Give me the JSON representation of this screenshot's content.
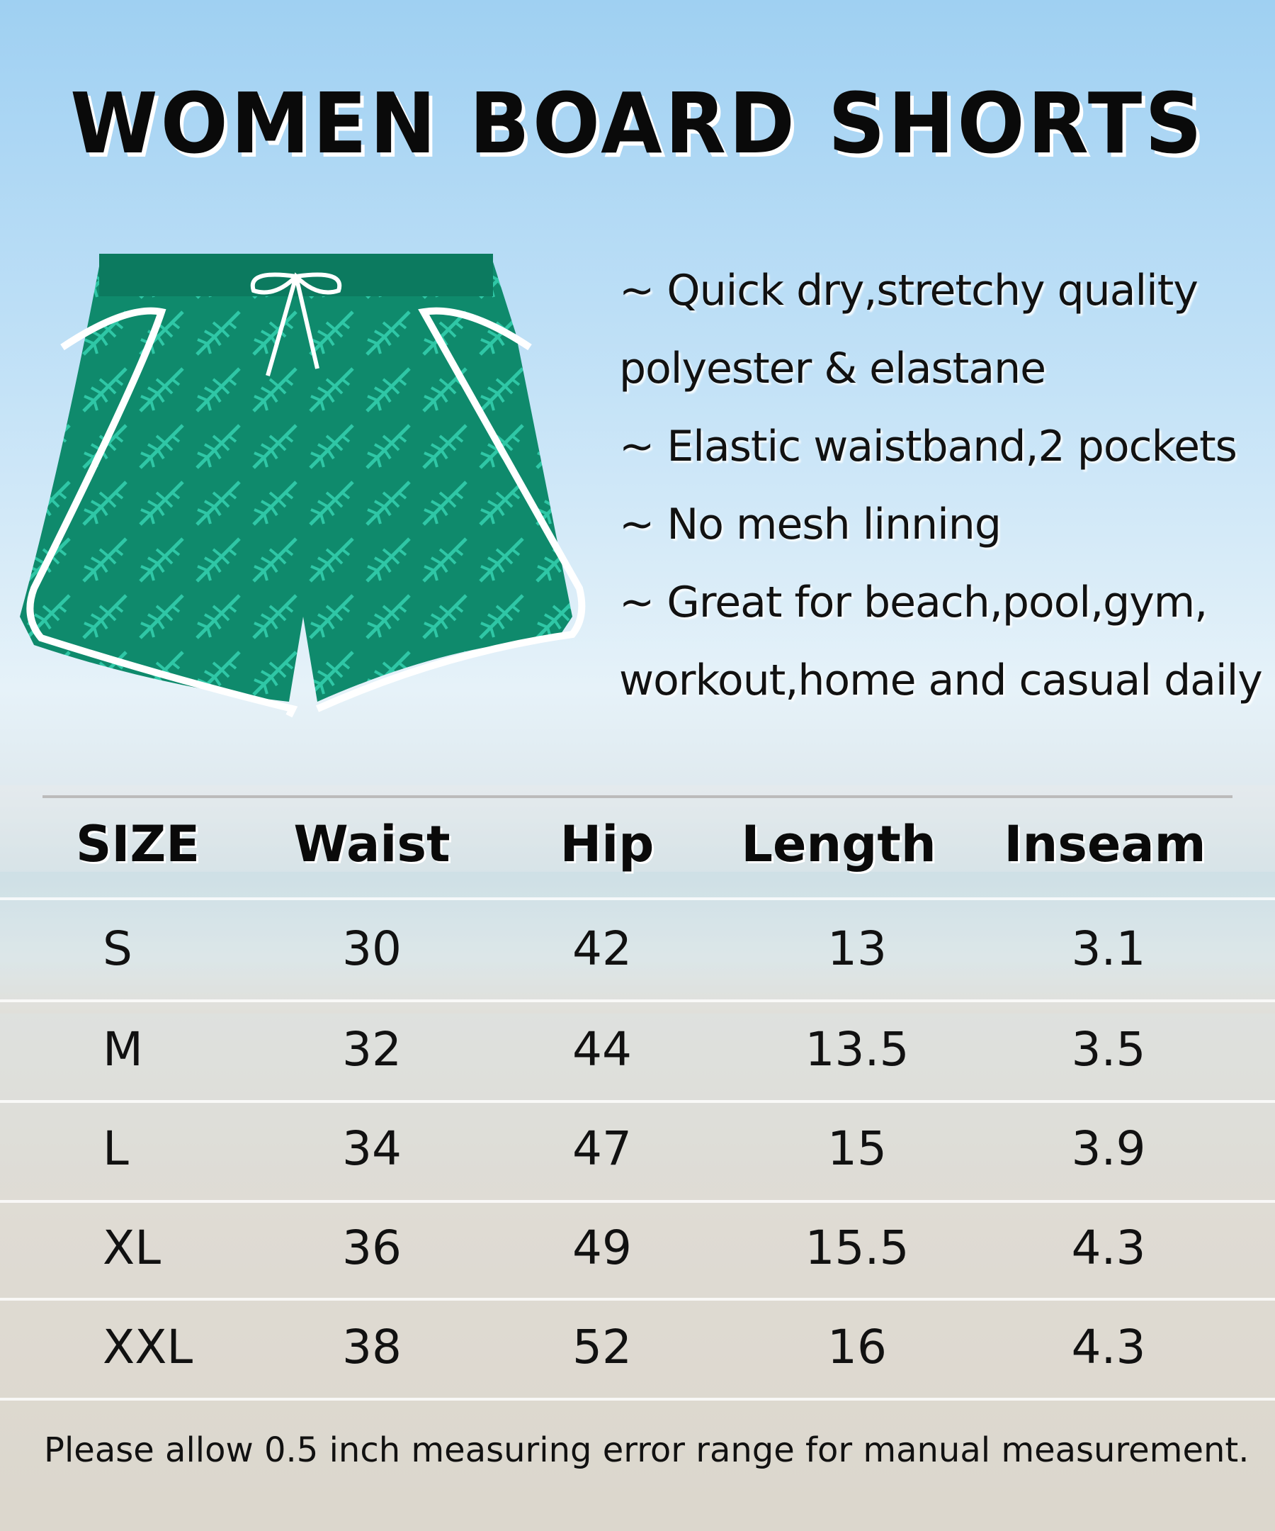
{
  "title": "WOMEN BOARD SHORTS",
  "features": [
    "~ Quick dry,stretchy quality",
    "polyester & elastane",
    "~ Elastic waistband,2 pockets",
    "~ No mesh linning",
    "~ Great for beach,pool,gym,",
    "workout,home and casual daily"
  ],
  "table": {
    "headers": [
      "SIZE",
      "Waist",
      "Hip",
      "Length",
      "Inseam"
    ],
    "rows": [
      [
        "S",
        "30",
        "42",
        "13",
        "3.1"
      ],
      [
        "M",
        "32",
        "44",
        "13.5",
        "3.5"
      ],
      [
        "L",
        "34",
        "47",
        "15",
        "3.9"
      ],
      [
        "XL",
        "36",
        "49",
        "15.5",
        "4.3"
      ],
      [
        "XXL",
        "38",
        "52",
        "16",
        "4.3"
      ]
    ]
  },
  "footnote": "Please allow 0.5 inch measuring error range for manual measurement.",
  "colors": {
    "shorts": "#0f8a6c",
    "leaf": "#2fc7a6",
    "trim": "#ffffff"
  }
}
